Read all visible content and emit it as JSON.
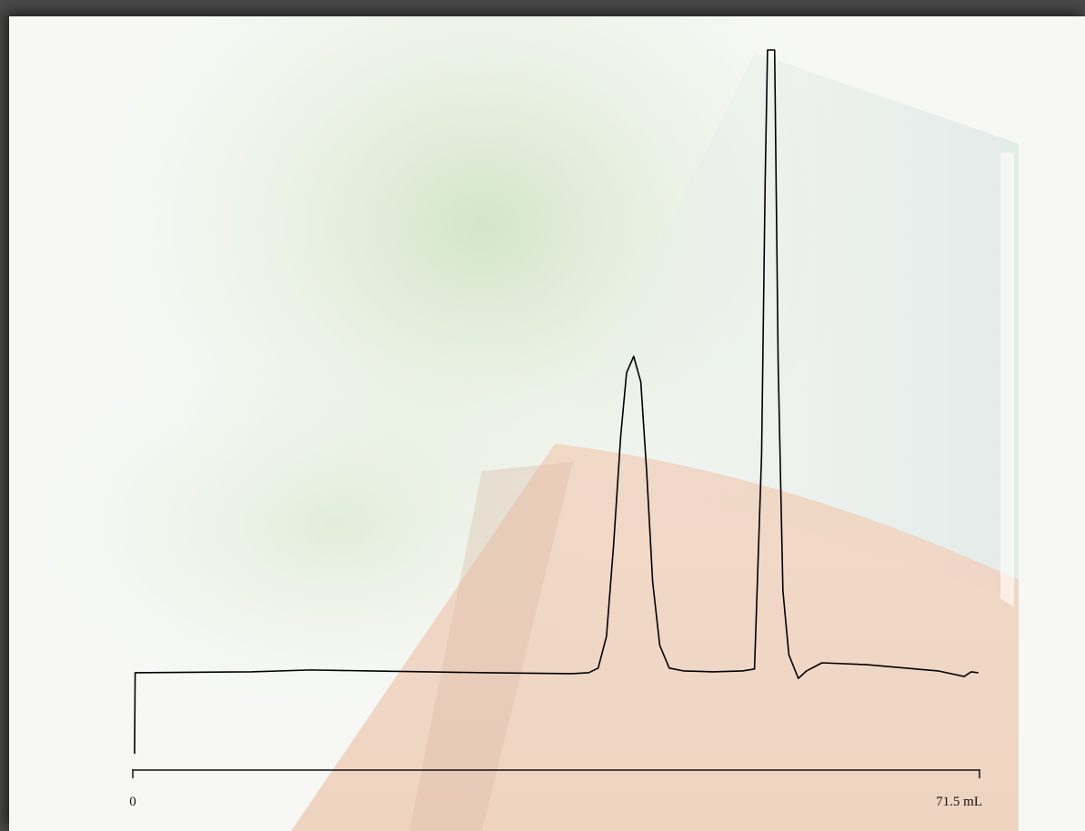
{
  "chart_data": {
    "type": "line",
    "x": [
      0.15,
      0.2,
      10,
      15,
      20,
      30,
      37,
      38.5,
      39.3,
      40,
      40.6,
      41.2,
      41.7,
      42.3,
      42.9,
      43.4,
      43.9,
      44.5,
      45.3,
      46.5,
      49,
      51.5,
      52.5,
      53.1,
      53.4,
      53.6,
      54.2,
      54.5,
      54.9,
      55.4,
      56.2,
      56.9,
      58.2,
      62,
      68,
      70.2,
      70.8,
      71.4
    ],
    "series": [
      {
        "color": "#000000",
        "values": [
          -26,
          0,
          0.3,
          0.9,
          0.6,
          0,
          -0.3,
          0,
          1.5,
          11.7,
          40.9,
          75.9,
          96.4,
          101.6,
          93.4,
          64.2,
          29.2,
          8.8,
          1.5,
          0.6,
          0.3,
          0.6,
          1.2,
          70,
          157.7,
          200,
          200,
          99,
          26.3,
          5.8,
          -1.8,
          0.6,
          3.2,
          2.6,
          0.6,
          -1.2,
          0.3,
          0
        ]
      }
    ],
    "xlim": [
      0,
      71.5
    ],
    "xticks": [
      0,
      {
        "value": 71.5,
        "label": "71.5 mL"
      }
    ],
    "ylim": [
      -26,
      200
    ]
  }
}
